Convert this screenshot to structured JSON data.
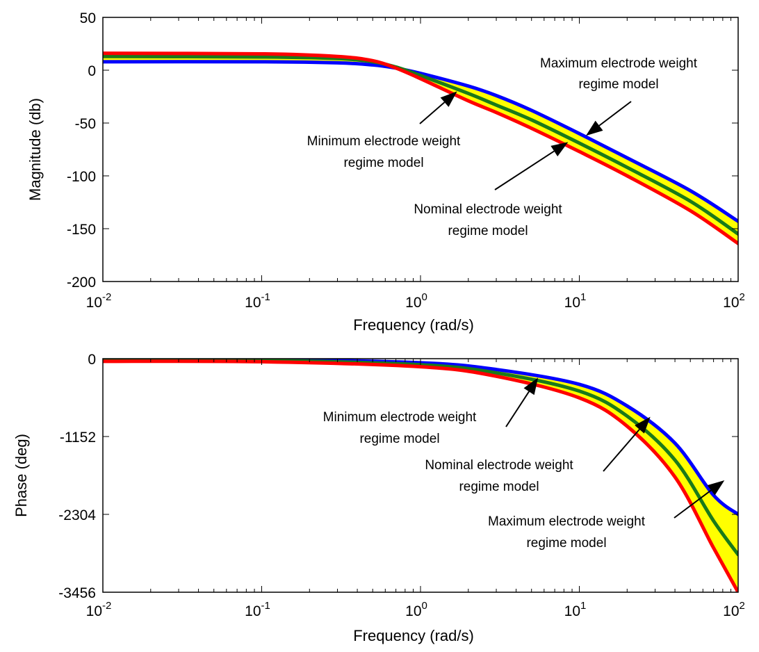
{
  "colors": {
    "min": "#ff0000",
    "nominal": "#1a7a1a",
    "max": "#0000ff",
    "band": "#ffff00",
    "axis": "#000000"
  },
  "chart_data": [
    {
      "type": "line",
      "id": "magnitude",
      "xscale": "log",
      "xlim": [
        0.01,
        100
      ],
      "ylim": [
        -200,
        50
      ],
      "xlabel": "Frequency (rad/s)",
      "ylabel": "Magnitude (db)",
      "xticks": [
        {
          "value": 0.01,
          "base": "10",
          "exp": "-2"
        },
        {
          "value": 0.1,
          "base": "10",
          "exp": "-1"
        },
        {
          "value": 1,
          "base": "10",
          "exp": "0"
        },
        {
          "value": 10,
          "base": "10",
          "exp": "1"
        },
        {
          "value": 100,
          "base": "10",
          "exp": "2"
        }
      ],
      "yticks": [
        50,
        0,
        -50,
        -100,
        -150,
        -200
      ],
      "band_between": [
        "min",
        "max"
      ],
      "series": [
        {
          "key": "max",
          "x": [
            0.01,
            0.1,
            0.3,
            0.5,
            0.7,
            1,
            2,
            3,
            5,
            10,
            20,
            50,
            100
          ],
          "y": [
            8,
            8,
            7,
            5,
            2,
            -3,
            -15,
            -24,
            -38,
            -60,
            -83,
            -114,
            -143
          ]
        },
        {
          "key": "nominal",
          "x": [
            0.01,
            0.1,
            0.3,
            0.5,
            0.7,
            1,
            2,
            3,
            5,
            10,
            20,
            50,
            100
          ],
          "y": [
            13,
            12.5,
            11,
            8,
            3,
            -5,
            -22,
            -33,
            -47,
            -69,
            -92,
            -124,
            -155
          ]
        },
        {
          "key": "min",
          "x": [
            0.01,
            0.1,
            0.3,
            0.5,
            0.7,
            1,
            2,
            3,
            5,
            10,
            20,
            50,
            100
          ],
          "y": [
            16,
            15.5,
            13,
            9,
            2,
            -8,
            -29,
            -40,
            -55,
            -77,
            -100,
            -133,
            -164
          ]
        }
      ],
      "annotations": [
        {
          "lines": [
            "Maximum electrode weight",
            "regime model"
          ],
          "target": [
            11,
            -62
          ]
        },
        {
          "lines": [
            "Minimum electrode weight",
            "regime model"
          ],
          "target": [
            1.7,
            -20
          ]
        },
        {
          "lines": [
            "Nominal electrode weight",
            "regime model"
          ],
          "target": [
            8.5,
            -68
          ]
        }
      ]
    },
    {
      "type": "line",
      "id": "phase",
      "xscale": "log",
      "xlim": [
        0.01,
        100
      ],
      "ylim": [
        -3456,
        0
      ],
      "xlabel": "Frequency (rad/s)",
      "ylabel": "Phase (deg)",
      "xticks": [
        {
          "value": 0.01,
          "base": "10",
          "exp": "-2"
        },
        {
          "value": 0.1,
          "base": "10",
          "exp": "-1"
        },
        {
          "value": 1,
          "base": "10",
          "exp": "0"
        },
        {
          "value": 10,
          "base": "10",
          "exp": "1"
        },
        {
          "value": 100,
          "base": "10",
          "exp": "2"
        }
      ],
      "yticks": [
        0,
        -1152,
        -2304,
        -3456
      ],
      "band_between": [
        "min",
        "max"
      ],
      "series": [
        {
          "key": "max",
          "x": [
            0.01,
            0.1,
            1,
            3,
            10,
            20,
            40,
            70,
            100
          ],
          "y": [
            0,
            -10,
            -60,
            -160,
            -380,
            -700,
            -1250,
            -2020,
            -2304
          ]
        },
        {
          "key": "nominal",
          "x": [
            0.01,
            0.1,
            1,
            3,
            10,
            20,
            40,
            70,
            100
          ],
          "y": [
            -20,
            -25,
            -90,
            -210,
            -480,
            -850,
            -1500,
            -2400,
            -2900
          ]
        },
        {
          "key": "min",
          "x": [
            0.01,
            0.1,
            1,
            3,
            10,
            20,
            40,
            70,
            100
          ],
          "y": [
            -40,
            -45,
            -120,
            -260,
            -580,
            -1000,
            -1750,
            -2800,
            -3456
          ]
        }
      ],
      "annotations": [
        {
          "lines": [
            "Minimum electrode weight",
            "regime model"
          ],
          "target": [
            5.5,
            -280
          ]
        },
        {
          "lines": [
            "Nominal electrode weight",
            "regime model"
          ],
          "target": [
            28,
            -860
          ]
        },
        {
          "lines": [
            "Maximum electrode weight",
            "regime model"
          ],
          "target": [
            82,
            -1800
          ]
        }
      ]
    }
  ]
}
